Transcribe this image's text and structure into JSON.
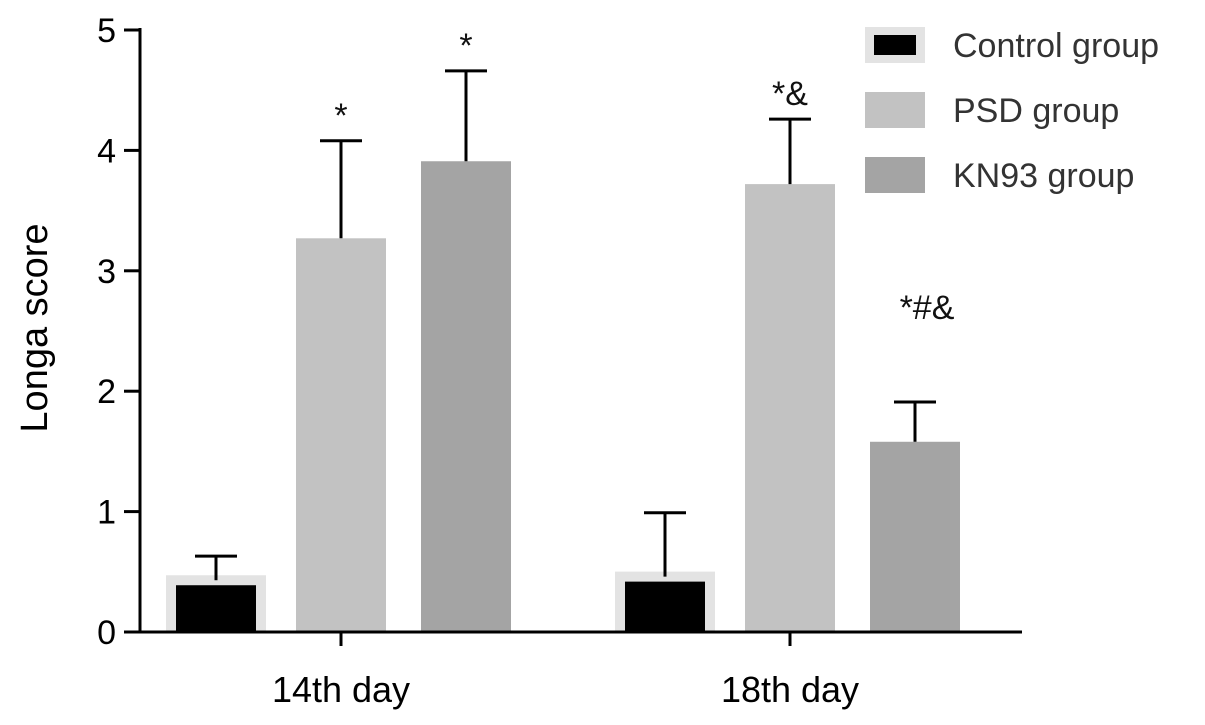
{
  "chart_data": {
    "type": "bar",
    "title": "",
    "xlabel": "",
    "ylabel": "Longa score",
    "ylim": [
      0,
      5
    ],
    "yticks": [
      0,
      1,
      2,
      3,
      4,
      5
    ],
    "grid": false,
    "legend_position": "top-right",
    "categories": [
      "14th day",
      "18th day"
    ],
    "series": [
      {
        "name": "Control group",
        "values": [
          0.43,
          0.46
        ],
        "error": [
          0.2,
          0.53
        ],
        "annotations": [
          "",
          ""
        ],
        "color": "#000000",
        "border_color": "#e3e3e3"
      },
      {
        "name": "PSD group",
        "values": [
          3.27,
          3.72
        ],
        "error": [
          0.81,
          0.54
        ],
        "annotations": [
          "*",
          "*&"
        ],
        "color": "#c2c2c2",
        "border_color": "#c2c2c2"
      },
      {
        "name": "KN93 group",
        "values": [
          3.91,
          1.58
        ],
        "error": [
          0.75,
          0.33
        ],
        "annotations": [
          "*",
          "*#&"
        ],
        "color": "#a4a4a4",
        "border_color": "#a4a4a4"
      }
    ]
  }
}
